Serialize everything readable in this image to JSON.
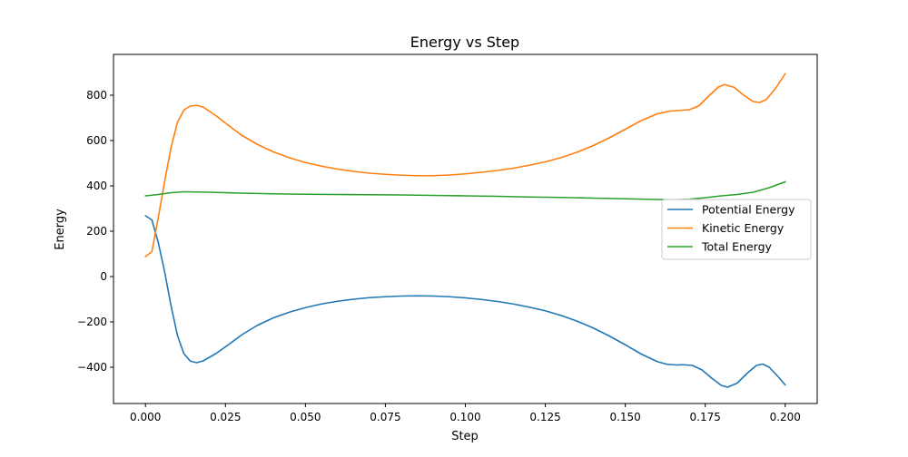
{
  "chart_data": {
    "type": "line",
    "title": "Energy vs Step",
    "xlabel": "Step",
    "ylabel": "Energy",
    "xlim": [
      -0.01,
      0.21
    ],
    "ylim": [
      -560,
      980
    ],
    "xticks": [
      0.0,
      0.025,
      0.05,
      0.075,
      0.1,
      0.125,
      0.15,
      0.175,
      0.2
    ],
    "xtick_labels": [
      "0.000",
      "0.025",
      "0.050",
      "0.075",
      "0.100",
      "0.125",
      "0.150",
      "0.175",
      "0.200"
    ],
    "yticks": [
      -400,
      -200,
      0,
      200,
      400,
      600,
      800
    ],
    "ytick_labels": [
      "−400",
      "−200",
      "0",
      "200",
      "400",
      "600",
      "800"
    ],
    "grid": false,
    "legend_position": "center-right",
    "series": [
      {
        "name": "Potential Energy",
        "color": "#1f77b4",
        "points": [
          [
            0.0,
            268
          ],
          [
            0.002,
            250
          ],
          [
            0.004,
            150
          ],
          [
            0.006,
            20
          ],
          [
            0.008,
            -130
          ],
          [
            0.01,
            -260
          ],
          [
            0.012,
            -340
          ],
          [
            0.014,
            -373
          ],
          [
            0.016,
            -380
          ],
          [
            0.018,
            -372
          ],
          [
            0.022,
            -340
          ],
          [
            0.026,
            -300
          ],
          [
            0.03,
            -258
          ],
          [
            0.035,
            -215
          ],
          [
            0.04,
            -182
          ],
          [
            0.045,
            -157
          ],
          [
            0.05,
            -137
          ],
          [
            0.055,
            -121
          ],
          [
            0.06,
            -109
          ],
          [
            0.065,
            -100
          ],
          [
            0.07,
            -93
          ],
          [
            0.075,
            -89
          ],
          [
            0.08,
            -86
          ],
          [
            0.085,
            -85
          ],
          [
            0.09,
            -86
          ],
          [
            0.095,
            -89
          ],
          [
            0.1,
            -94
          ],
          [
            0.105,
            -101
          ],
          [
            0.11,
            -110
          ],
          [
            0.115,
            -121
          ],
          [
            0.12,
            -135
          ],
          [
            0.125,
            -151
          ],
          [
            0.13,
            -172
          ],
          [
            0.135,
            -197
          ],
          [
            0.14,
            -227
          ],
          [
            0.145,
            -262
          ],
          [
            0.15,
            -301
          ],
          [
            0.155,
            -342
          ],
          [
            0.16,
            -375
          ],
          [
            0.163,
            -387
          ],
          [
            0.166,
            -390
          ],
          [
            0.168,
            -389
          ],
          [
            0.171,
            -392
          ],
          [
            0.174,
            -412
          ],
          [
            0.177,
            -448
          ],
          [
            0.18,
            -480
          ],
          [
            0.182,
            -488
          ],
          [
            0.185,
            -470
          ],
          [
            0.188,
            -428
          ],
          [
            0.191,
            -392
          ],
          [
            0.193,
            -386
          ],
          [
            0.195,
            -400
          ],
          [
            0.198,
            -445
          ],
          [
            0.2,
            -478
          ]
        ]
      },
      {
        "name": "Kinetic Energy",
        "color": "#ff7f0e",
        "points": [
          [
            0.0,
            88
          ],
          [
            0.002,
            110
          ],
          [
            0.004,
            260
          ],
          [
            0.006,
            420
          ],
          [
            0.008,
            570
          ],
          [
            0.01,
            680
          ],
          [
            0.012,
            735
          ],
          [
            0.014,
            752
          ],
          [
            0.016,
            755
          ],
          [
            0.018,
            748
          ],
          [
            0.022,
            710
          ],
          [
            0.026,
            666
          ],
          [
            0.03,
            624
          ],
          [
            0.035,
            583
          ],
          [
            0.04,
            550
          ],
          [
            0.045,
            524
          ],
          [
            0.05,
            503
          ],
          [
            0.055,
            487
          ],
          [
            0.06,
            474
          ],
          [
            0.065,
            464
          ],
          [
            0.07,
            456
          ],
          [
            0.075,
            451
          ],
          [
            0.08,
            447
          ],
          [
            0.085,
            445
          ],
          [
            0.09,
            445
          ],
          [
            0.095,
            448
          ],
          [
            0.1,
            453
          ],
          [
            0.105,
            460
          ],
          [
            0.11,
            468
          ],
          [
            0.115,
            478
          ],
          [
            0.12,
            491
          ],
          [
            0.125,
            506
          ],
          [
            0.13,
            525
          ],
          [
            0.135,
            549
          ],
          [
            0.14,
            578
          ],
          [
            0.145,
            612
          ],
          [
            0.15,
            650
          ],
          [
            0.155,
            688
          ],
          [
            0.16,
            718
          ],
          [
            0.164,
            730
          ],
          [
            0.167,
            733
          ],
          [
            0.17,
            736
          ],
          [
            0.173,
            753
          ],
          [
            0.176,
            795
          ],
          [
            0.179,
            835
          ],
          [
            0.181,
            847
          ],
          [
            0.184,
            835
          ],
          [
            0.187,
            800
          ],
          [
            0.19,
            772
          ],
          [
            0.192,
            768
          ],
          [
            0.194,
            780
          ],
          [
            0.197,
            830
          ],
          [
            0.2,
            895
          ]
        ]
      },
      {
        "name": "Total Energy",
        "color": "#2ca02c",
        "points": [
          [
            0.0,
            356
          ],
          [
            0.004,
            362
          ],
          [
            0.008,
            370
          ],
          [
            0.012,
            374
          ],
          [
            0.016,
            373
          ],
          [
            0.02,
            372
          ],
          [
            0.03,
            368
          ],
          [
            0.04,
            365
          ],
          [
            0.05,
            363
          ],
          [
            0.06,
            362
          ],
          [
            0.07,
            361
          ],
          [
            0.08,
            360
          ],
          [
            0.09,
            358
          ],
          [
            0.1,
            356
          ],
          [
            0.11,
            354
          ],
          [
            0.12,
            351
          ],
          [
            0.13,
            349
          ],
          [
            0.14,
            346
          ],
          [
            0.15,
            343
          ],
          [
            0.16,
            340
          ],
          [
            0.165,
            339
          ],
          [
            0.17,
            341
          ],
          [
            0.175,
            348
          ],
          [
            0.18,
            356
          ],
          [
            0.185,
            362
          ],
          [
            0.19,
            372
          ],
          [
            0.195,
            392
          ],
          [
            0.2,
            418
          ]
        ]
      }
    ]
  }
}
